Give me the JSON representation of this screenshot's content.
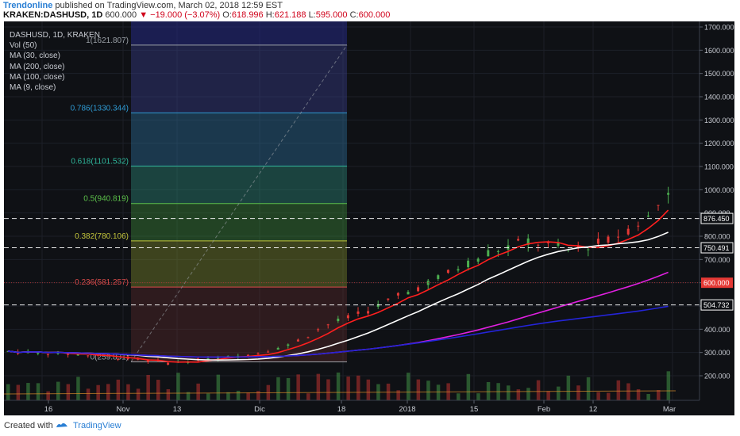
{
  "header": {
    "author": "Trendonline",
    "published_text": "published on TradingView.com, March 02, 2018 12:59 EST",
    "symbol_line": "KRAKEN:DASHUSD, 1D",
    "last": "600.000",
    "change": "−19.000 (−3.07%)",
    "ohlc": {
      "o": "618.996",
      "h": "621.188",
      "l": "595.000",
      "c": "600.000"
    }
  },
  "chart": {
    "title": "DASHUSD, 1D, KRAKEN",
    "indicators": [
      "Vol (50)",
      "MA (30, close)",
      "MA (200, close)",
      "MA (100, close)",
      "MA (9, close)"
    ],
    "price_axis": [
      "1700.000",
      "1600.000",
      "1500.000",
      "1400.000",
      "1300.000",
      "1200.000",
      "1100.000",
      "1000.000",
      "900.000",
      "800.000",
      "700.000",
      "600.000",
      "500.000",
      "400.000",
      "300.000",
      "200.000"
    ],
    "price_badges": [
      {
        "label": "876.450",
        "value": 876.45
      },
      {
        "label": "750.491",
        "value": 750.491
      },
      {
        "label": "600.000",
        "value": 600
      },
      {
        "label": "504.732",
        "value": 504.732
      }
    ],
    "time_axis": [
      "16",
      "Nov",
      "13",
      "Dic",
      "18",
      "2018",
      "15",
      "Feb",
      "12",
      "Mar"
    ],
    "fib_levels": [
      {
        "label": "1(1621.807)",
        "value": 1621.807,
        "color": "#9aa0a6"
      },
      {
        "label": "0.786(1330.344)",
        "value": 1330.344,
        "color": "#2f9bd4"
      },
      {
        "label": "0.618(1101.532)",
        "value": 1101.532,
        "color": "#2fb59a"
      },
      {
        "label": "0.5(940.819)",
        "value": 940.819,
        "color": "#5cc04a"
      },
      {
        "label": "0.382(780.106)",
        "value": 780.106,
        "color": "#c2c43a"
      },
      {
        "label": "0.236(581.257)",
        "value": 581.257,
        "color": "#d44a4a"
      },
      {
        "label": "0(259.831)",
        "value": 259.831,
        "color": "#9aa0a6"
      }
    ],
    "colors": {
      "background": "#0f1115",
      "up": "#4caf50",
      "down": "#e53935",
      "ma9": "#ff1f1f",
      "ma30": "#ffffff",
      "ma100": "#e020e0",
      "ma200": "#2424d8",
      "vol_ma": "#d98c2a"
    }
  },
  "footer": {
    "created_with": "Created with",
    "brand": "TradingView",
    "logo_icon": "tradingview-logo-icon"
  }
}
